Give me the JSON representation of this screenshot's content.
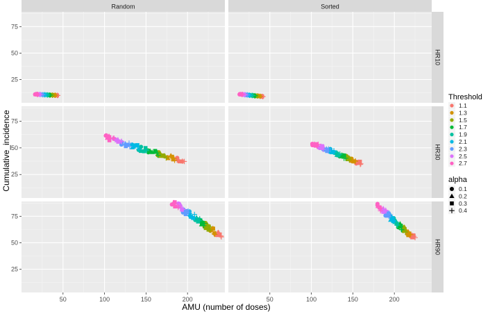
{
  "chart_data": {
    "type": "scatter",
    "xlabel": "AMU (number of doses)",
    "ylabel": "Cumulative_incidence",
    "x_ticks": [
      50,
      100,
      150,
      200
    ],
    "y_ticks": [
      25,
      50,
      75
    ],
    "xlim": [
      0,
      245
    ],
    "ylim": [
      3,
      89
    ],
    "columns": [
      "Random",
      "Sorted"
    ],
    "rows": [
      "HR10",
      "HR30",
      "HR90"
    ],
    "legend": {
      "threshold_title": "Threshold",
      "thresholds": [
        "1.1",
        "1.3",
        "1.5",
        "1.7",
        "1.9",
        "2.1",
        "2.3",
        "2.5",
        "2.7"
      ],
      "threshold_colors": [
        "#F8766D",
        "#D39200",
        "#93AA00",
        "#00BA38",
        "#00C19F",
        "#00B9E3",
        "#619CFF",
        "#DB72FB",
        "#FF61C3"
      ],
      "alpha_title": "alpha",
      "alphas": [
        "0.1",
        "0.2",
        "0.3",
        "0.4"
      ],
      "alpha_shapes": [
        "circle",
        "triangle",
        "square",
        "plus"
      ]
    },
    "panel_data": {
      "Random": {
        "HR10": {
          "amu_range": [
            18,
            42
          ],
          "incidence_range": [
            10,
            11
          ]
        },
        "HR30": {
          "amu_range": [
            105,
            190
          ],
          "incidence_range": [
            38,
            59
          ]
        },
        "HR90": {
          "amu_range": [
            185,
            237
          ],
          "incidence_range": [
            58,
            87
          ]
        }
      },
      "Sorted": {
        "HR10": {
          "amu_range": [
            15,
            40
          ],
          "incidence_range": [
            9,
            11
          ]
        },
        "HR30": {
          "amu_range": [
            105,
            157
          ],
          "incidence_range": [
            36,
            53
          ]
        },
        "HR90": {
          "amu_range": [
            182,
            222
          ],
          "incidence_range": [
            55,
            84
          ]
        }
      }
    }
  }
}
